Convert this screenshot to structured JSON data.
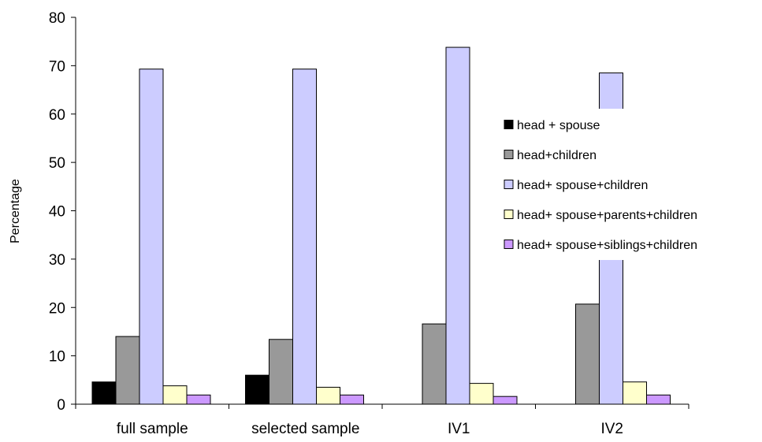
{
  "chart_data": {
    "type": "bar",
    "title": "",
    "xlabel": "",
    "ylabel": "Percentage",
    "ylim": [
      0,
      80
    ],
    "yticks": [
      0,
      10,
      20,
      30,
      40,
      50,
      60,
      70,
      80
    ],
    "grid": false,
    "legend_position": "right",
    "categories": [
      "full sample",
      "selected sample",
      "IV1",
      "IV2"
    ],
    "series": [
      {
        "name": "head + spouse",
        "color": "#000000",
        "values": [
          4.6,
          6.0,
          0,
          0
        ]
      },
      {
        "name": "head+children",
        "color": "#999999",
        "values": [
          14.0,
          13.4,
          16.6,
          20.7
        ]
      },
      {
        "name": "head+ spouse+children",
        "color": "#ccccff",
        "values": [
          69.3,
          69.3,
          73.8,
          68.5
        ]
      },
      {
        "name": "head+ spouse+parents+children",
        "color": "#ffffcc",
        "values": [
          3.8,
          3.5,
          4.3,
          4.6
        ]
      },
      {
        "name": "head+ spouse+siblings+children",
        "color": "#cc99ff",
        "values": [
          1.9,
          1.9,
          1.6,
          1.9
        ]
      }
    ]
  }
}
